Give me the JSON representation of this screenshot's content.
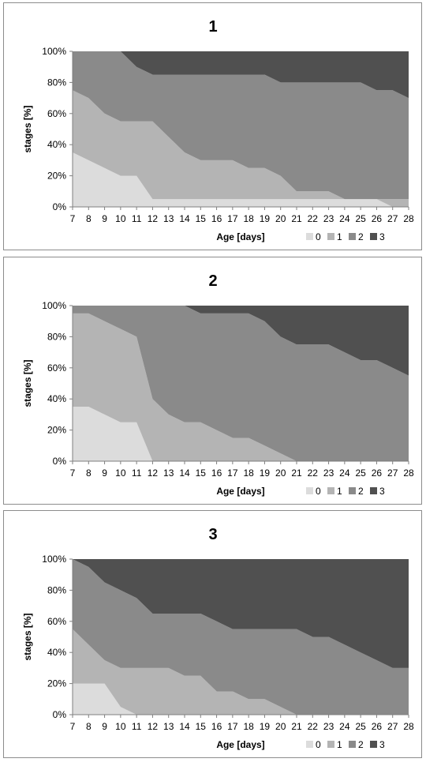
{
  "colors": {
    "stage0": "#dcdcdc",
    "stage1": "#b4b4b4",
    "stage2": "#8a8a8a",
    "stage3": "#505050"
  },
  "chart_data": [
    {
      "type": "area",
      "stacked": true,
      "title": "1",
      "xlabel": "Age [days]",
      "ylabel": "stages [%]",
      "x": [
        "7",
        "8",
        "9",
        "10",
        "11",
        "12",
        "13",
        "14",
        "15",
        "16",
        "17",
        "18",
        "19",
        "20",
        "21",
        "22",
        "23",
        "24",
        "25",
        "26",
        "27",
        "28"
      ],
      "y_ticks": [
        "0%",
        "20%",
        "40%",
        "60%",
        "80%",
        "100%"
      ],
      "ylim": [
        0,
        100
      ],
      "grid": false,
      "legend_position": "bottom-right",
      "series": [
        {
          "name": "0",
          "values": [
            35,
            30,
            25,
            20,
            20,
            5,
            5,
            5,
            5,
            5,
            5,
            5,
            5,
            5,
            5,
            5,
            5,
            5,
            5,
            5,
            0,
            0
          ]
        },
        {
          "name": "1",
          "values": [
            40,
            40,
            35,
            35,
            35,
            50,
            40,
            30,
            25,
            25,
            25,
            20,
            20,
            15,
            5,
            5,
            5,
            0,
            0,
            0,
            5,
            5
          ]
        },
        {
          "name": "2",
          "values": [
            25,
            30,
            40,
            45,
            35,
            30,
            40,
            50,
            55,
            55,
            55,
            60,
            60,
            60,
            70,
            70,
            70,
            75,
            75,
            70,
            70,
            65
          ]
        },
        {
          "name": "3",
          "values": [
            0,
            0,
            0,
            0,
            10,
            15,
            15,
            15,
            15,
            15,
            15,
            15,
            15,
            20,
            20,
            20,
            20,
            20,
            20,
            25,
            25,
            30
          ]
        }
      ]
    },
    {
      "type": "area",
      "stacked": true,
      "title": "2",
      "xlabel": "Age [days]",
      "ylabel": "stages [%]",
      "x": [
        "7",
        "8",
        "9",
        "10",
        "11",
        "12",
        "13",
        "14",
        "15",
        "16",
        "17",
        "18",
        "19",
        "20",
        "21",
        "22",
        "23",
        "24",
        "25",
        "26",
        "27",
        "28"
      ],
      "y_ticks": [
        "0%",
        "20%",
        "40%",
        "60%",
        "80%",
        "100%"
      ],
      "ylim": [
        0,
        100
      ],
      "grid": false,
      "legend_position": "bottom-right",
      "series": [
        {
          "name": "0",
          "values": [
            35,
            35,
            30,
            25,
            25,
            0,
            0,
            0,
            0,
            0,
            0,
            0,
            0,
            0,
            0,
            0,
            0,
            0,
            0,
            0,
            0,
            0
          ]
        },
        {
          "name": "1",
          "values": [
            60,
            60,
            60,
            60,
            55,
            40,
            30,
            25,
            25,
            20,
            15,
            15,
            10,
            5,
            0,
            0,
            0,
            0,
            0,
            0,
            0,
            0
          ]
        },
        {
          "name": "2",
          "values": [
            5,
            5,
            10,
            15,
            20,
            60,
            70,
            75,
            70,
            75,
            80,
            80,
            80,
            75,
            75,
            75,
            75,
            70,
            65,
            65,
            60,
            55
          ]
        },
        {
          "name": "3",
          "values": [
            0,
            0,
            0,
            0,
            0,
            0,
            0,
            0,
            5,
            5,
            5,
            5,
            10,
            20,
            25,
            25,
            25,
            30,
            35,
            35,
            40,
            45
          ]
        }
      ]
    },
    {
      "type": "area",
      "stacked": true,
      "title": "3",
      "xlabel": "Age [days]",
      "ylabel": "stages [%]",
      "x": [
        "7",
        "8",
        "9",
        "10",
        "11",
        "12",
        "13",
        "14",
        "15",
        "16",
        "17",
        "18",
        "19",
        "20",
        "21",
        "22",
        "23",
        "24",
        "25",
        "26",
        "27",
        "28"
      ],
      "y_ticks": [
        "0%",
        "20%",
        "40%",
        "60%",
        "80%",
        "100%"
      ],
      "ylim": [
        0,
        100
      ],
      "grid": false,
      "legend_position": "bottom-right",
      "series": [
        {
          "name": "0",
          "values": [
            20,
            20,
            20,
            5,
            0,
            0,
            0,
            0,
            0,
            0,
            0,
            0,
            0,
            0,
            0,
            0,
            0,
            0,
            0,
            0,
            0,
            0
          ]
        },
        {
          "name": "1",
          "values": [
            35,
            25,
            15,
            25,
            30,
            30,
            30,
            25,
            25,
            15,
            15,
            10,
            10,
            5,
            0,
            0,
            0,
            0,
            0,
            0,
            0,
            0
          ]
        },
        {
          "name": "2",
          "values": [
            45,
            50,
            50,
            50,
            45,
            35,
            35,
            40,
            40,
            45,
            40,
            45,
            45,
            50,
            55,
            50,
            50,
            45,
            40,
            35,
            30,
            30
          ]
        },
        {
          "name": "3",
          "values": [
            0,
            5,
            15,
            20,
            25,
            35,
            35,
            35,
            35,
            40,
            45,
            45,
            45,
            45,
            45,
            50,
            50,
            55,
            60,
            65,
            70,
            70
          ]
        }
      ]
    }
  ]
}
